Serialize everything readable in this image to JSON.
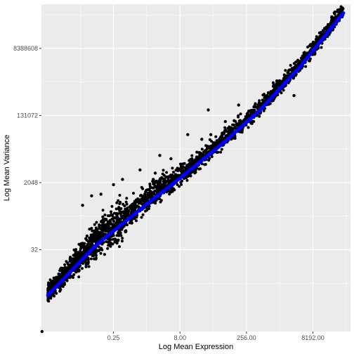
{
  "chart_data": {
    "type": "scatter",
    "title": "",
    "xlabel": "Log Mean Expression",
    "ylabel": "Log Mean Variance",
    "x_scale": "log2",
    "y_scale": "log2",
    "xlim": [
      0.00585,
      58000
    ],
    "ylim": [
      0.2,
      130000000
    ],
    "x_ticks": [
      0.25,
      8,
      256,
      8192
    ],
    "x_tick_labels": [
      "0.25",
      "8.00",
      "256.00",
      "8192.00"
    ],
    "y_ticks": [
      32,
      2048,
      131072,
      8388608
    ],
    "y_tick_labels": [
      "32",
      "2048",
      "131072",
      "8388608"
    ],
    "grid": true,
    "legend": "none",
    "colors": {
      "panel": "#ebebeb",
      "grid": "#ffffff",
      "points": "#000000",
      "fit_line": "#0000ff"
    },
    "fit_line": {
      "x": [
        0.0082,
        0.1,
        1,
        8,
        64,
        512,
        4096,
        40000
      ],
      "y": [
        1.9,
        42,
        385,
        2700,
        20000,
        180000,
        2600000,
        75000000
      ]
    },
    "outliers": {
      "x": [
        0.006,
        25000,
        15500,
        1250,
        3050,
        35,
        12,
        135,
        5,
        40,
        420,
        25,
        85,
        2.2,
        0.13,
        0.25,
        0.08,
        0.05,
        0.4,
        1.0,
        2.8,
        170
      ],
      "y": [
        0.2,
        45000000,
        17000000,
        1120000,
        450000,
        185000,
        40000,
        95000,
        9000,
        40000,
        140000,
        30000,
        90000,
        3700,
        1000,
        1800,
        900,
        500,
        2500,
        4500,
        11000,
        250000
      ]
    }
  }
}
